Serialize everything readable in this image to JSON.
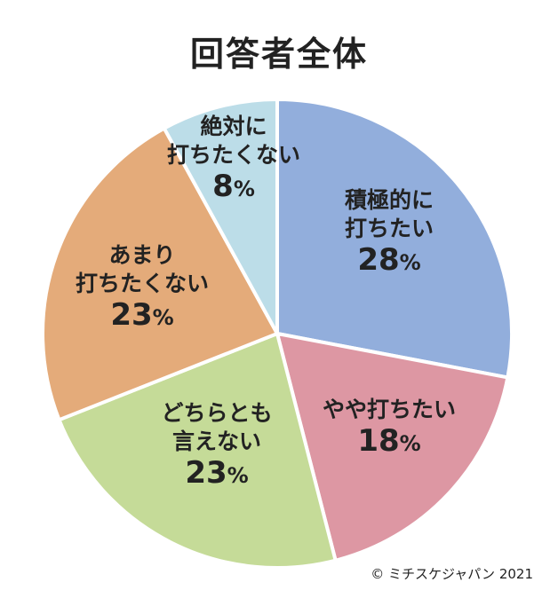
{
  "title": "回答者全体",
  "copyright": "© ミチスケジャパン 2021",
  "chart_data": {
    "type": "pie",
    "title": "回答者全体",
    "slices": [
      {
        "label_lines": [
          "積極的に",
          "打ちたい"
        ],
        "value": 28,
        "value_text": "28",
        "unit": "%",
        "color": "#92aedc"
      },
      {
        "label_lines": [
          "やや打ちたい"
        ],
        "value": 18,
        "value_text": "18",
        "unit": "%",
        "color": "#dd97a3"
      },
      {
        "label_lines": [
          "どちらとも",
          "言えない"
        ],
        "value": 23,
        "value_text": "23",
        "unit": "%",
        "color": "#c5db98"
      },
      {
        "label_lines": [
          "あまり",
          "打ちたくない"
        ],
        "value": 23,
        "value_text": "23",
        "unit": "%",
        "color": "#e4ab7a"
      },
      {
        "label_lines": [
          "絶対に",
          "打ちたくない"
        ],
        "value": 8,
        "value_text": "8",
        "unit": "%",
        "color": "#bcdde8"
      }
    ]
  }
}
